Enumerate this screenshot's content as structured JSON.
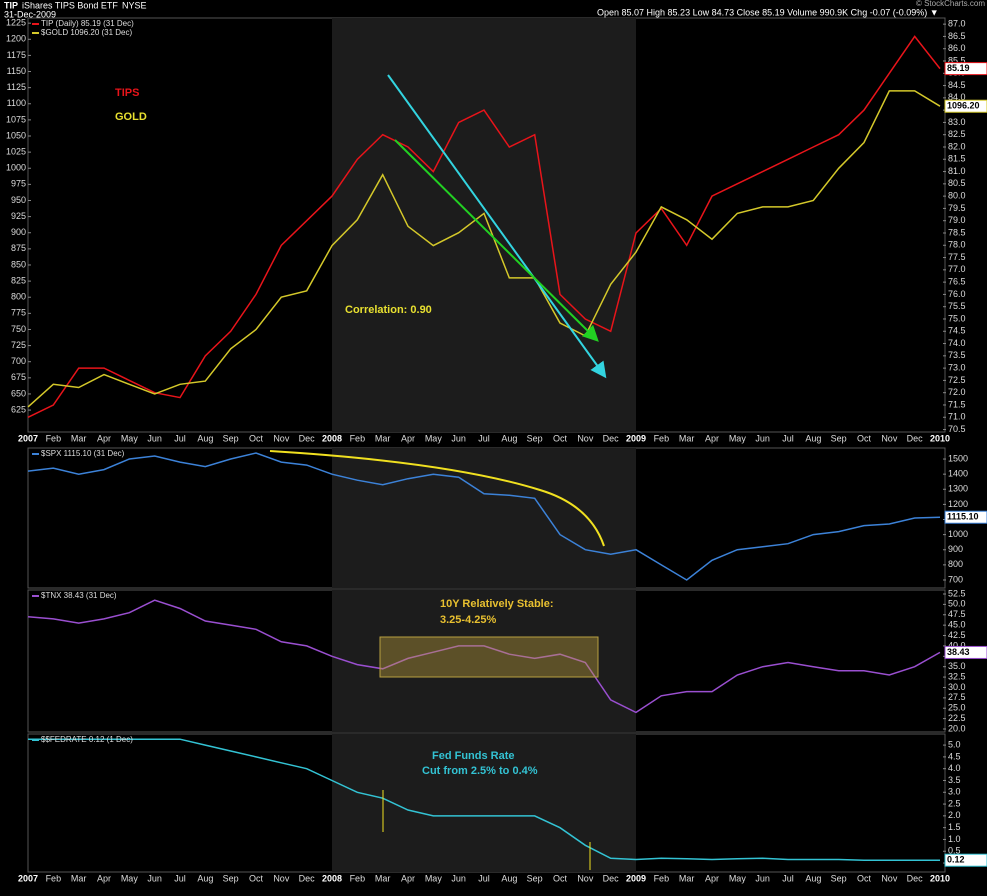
{
  "header": {
    "symbol": "TIP",
    "name": "iShares TIPS Bond ETF",
    "exchange": "NYSE",
    "date": "31-Dec-2009",
    "quote": "Open 85.07  High 85.23  Low 84.73  Close 85.19  Volume 990.9K  Chg -0.07 (-0.09%) ▼",
    "credit": "© StockCharts.com"
  },
  "chart_data": [
    {
      "type": "line",
      "categories": [
        "2007",
        "Feb",
        "Mar",
        "Apr",
        "May",
        "Jun",
        "Jul",
        "Aug",
        "Sep",
        "Oct",
        "Nov",
        "Dec",
        "2008",
        "Feb",
        "Mar",
        "Apr",
        "May",
        "Jun",
        "Jul",
        "Aug",
        "Sep",
        "Oct",
        "Nov",
        "Dec",
        "2009",
        "Feb",
        "Mar",
        "Apr",
        "May",
        "Jun",
        "Jul",
        "Aug",
        "Sep",
        "Oct",
        "Nov",
        "Dec",
        "2010"
      ],
      "ylim": [
        70.4,
        87.25
      ],
      "yticks": [
        {
          "value": 70.5,
          "label": "70.5"
        },
        {
          "value": 71,
          "label": "71.0"
        },
        {
          "value": 71.5,
          "label": "71.5"
        },
        {
          "value": 72,
          "label": "72.0"
        },
        {
          "value": 72.5,
          "label": "72.5"
        },
        {
          "value": 73,
          "label": "73.0"
        },
        {
          "value": 73.5,
          "label": "73.5"
        },
        {
          "value": 74,
          "label": "74.0"
        },
        {
          "value": 74.5,
          "label": "74.5"
        },
        {
          "value": 75,
          "label": "75.0"
        },
        {
          "value": 75.5,
          "label": "75.5"
        },
        {
          "value": 76,
          "label": "76.0"
        },
        {
          "value": 76.5,
          "label": "76.5"
        },
        {
          "value": 77,
          "label": "77.0"
        },
        {
          "value": 77.5,
          "label": "77.5"
        },
        {
          "value": 78,
          "label": "78.0"
        },
        {
          "value": 78.5,
          "label": "78.5"
        },
        {
          "value": 79,
          "label": "79.0"
        },
        {
          "value": 79.5,
          "label": "79.5"
        },
        {
          "value": 80,
          "label": "80.0"
        },
        {
          "value": 80.5,
          "label": "80.5"
        },
        {
          "value": 81,
          "label": "81.0"
        },
        {
          "value": 81.5,
          "label": "81.5"
        },
        {
          "value": 82,
          "label": "82.0"
        },
        {
          "value": 82.5,
          "label": "82.5"
        },
        {
          "value": 83,
          "label": "83.0"
        },
        {
          "value": 83.5,
          "label": "83.5"
        },
        {
          "value": 84,
          "label": "84.0"
        },
        {
          "value": 84.5,
          "label": "84.5"
        },
        {
          "value": 85,
          "label": "85.0"
        },
        {
          "value": 85.5,
          "label": "85.5"
        },
        {
          "value": 86,
          "label": "86.0"
        },
        {
          "value": 86.5,
          "label": "86.5"
        },
        {
          "value": 87,
          "label": "87.0"
        }
      ],
      "y2lim": [
        591,
        1233
      ],
      "y2ticks": [
        625,
        650,
        675,
        700,
        725,
        750,
        775,
        800,
        825,
        850,
        875,
        900,
        925,
        950,
        975,
        1000,
        1025,
        1050,
        1075,
        1100,
        1125,
        1150,
        1175,
        1200,
        1225
      ],
      "series": [
        {
          "name": "TIP (Daily) 85.19 (31 Dec)",
          "color": "#e8141a",
          "last_label": "85.19",
          "values": [
            71,
            71.5,
            73,
            73,
            72.5,
            72,
            71.8,
            73.5,
            74.5,
            76,
            78,
            79,
            80,
            81.5,
            82.5,
            82,
            81,
            83,
            83.5,
            82,
            82.5,
            76,
            75,
            74.5,
            78.5,
            79.5,
            78,
            80,
            80.5,
            81,
            81.5,
            82,
            82.5,
            83.5,
            85,
            86.5,
            85.19
          ]
        },
        {
          "name": "$GOLD 1096.20 (31 Dec)",
          "color": "#d4c82a",
          "axis": "y2",
          "last_label": "1096.20",
          "values": [
            630,
            665,
            660,
            680,
            665,
            650,
            665,
            670,
            720,
            750,
            800,
            810,
            880,
            920,
            990,
            910,
            880,
            900,
            930,
            830,
            830,
            760,
            740,
            820,
            870,
            940,
            920,
            890,
            930,
            940,
            940,
            950,
            1000,
            1040,
            1120,
            1120,
            1096.2
          ]
        }
      ],
      "annotations": [
        {
          "text": "TIPS",
          "color": "#e8141a"
        },
        {
          "text": "GOLD",
          "color": "#e8e030"
        },
        {
          "text": "Correlation: 0.90",
          "color": "#e8e030"
        }
      ]
    },
    {
      "type": "line",
      "ylim": [
        647,
        1573
      ],
      "yticks": [
        700,
        800,
        900,
        1000,
        1100,
        1200,
        1300,
        1400,
        1500
      ],
      "series": [
        {
          "name": "$SPX 1115.10 (31 Dec)",
          "color": "#3c82d8",
          "last_label": "1115.10",
          "values": [
            1420,
            1440,
            1400,
            1430,
            1500,
            1520,
            1480,
            1450,
            1500,
            1540,
            1480,
            1460,
            1400,
            1360,
            1330,
            1370,
            1400,
            1380,
            1270,
            1260,
            1240,
            1000,
            900,
            870,
            900,
            800,
            700,
            830,
            900,
            920,
            940,
            1000,
            1020,
            1060,
            1070,
            1110,
            1115.1
          ]
        }
      ]
    },
    {
      "type": "line",
      "ylim": [
        19.28,
        53.46
      ],
      "yticks": [
        {
          "value": 20,
          "label": "20.0"
        },
        22.5,
        {
          "value": 25,
          "label": "25.0"
        },
        27.5,
        {
          "value": 30,
          "label": "30.0"
        },
        32.5,
        {
          "value": 35,
          "label": "35.0"
        },
        37.5,
        {
          "value": 40,
          "label": "40.0"
        },
        42.5,
        {
          "value": 45,
          "label": "45.0"
        },
        47.5,
        {
          "value": 50,
          "label": "50.0"
        },
        52.5
      ],
      "series": [
        {
          "name": "$TNX 38.43 (31 Dec)",
          "color": "#9a4fd0",
          "last_label": "38.43",
          "values": [
            47,
            46.5,
            45.5,
            46.5,
            48,
            51,
            49,
            46,
            45,
            44,
            41,
            40,
            37.5,
            35.5,
            34.5,
            37,
            38.5,
            40,
            40,
            38,
            37,
            38,
            36,
            27,
            24,
            28,
            29,
            29,
            33,
            35,
            36,
            35,
            34,
            34,
            33,
            35,
            38.43
          ]
        }
      ],
      "annotations": [
        {
          "text": "10Y Relatively Stable:",
          "color": "#e8c030"
        },
        {
          "text": "3.25-4.25%",
          "color": "#e8c030"
        }
      ]
    },
    {
      "type": "line",
      "categories": [
        "2007",
        "Feb",
        "Mar",
        "Apr",
        "May",
        "Jun",
        "Jul",
        "Aug",
        "Sep",
        "Oct",
        "Nov",
        "Dec",
        "2008",
        "Feb",
        "Mar",
        "Apr",
        "May",
        "Jun",
        "Jul",
        "Aug",
        "Sep",
        "Oct",
        "Nov",
        "Dec",
        "2009",
        "Feb",
        "Mar",
        "Apr",
        "May",
        "Jun",
        "Jul",
        "Aug",
        "Sep",
        "Oct",
        "Nov",
        "Dec",
        "2010"
      ],
      "ylim": [
        -0.38,
        5.47
      ],
      "yticks": [
        {
          "value": 0,
          "label": "0.0"
        },
        0.5,
        {
          "value": 1,
          "label": "1.0"
        },
        1.5,
        {
          "value": 2,
          "label": "2.0"
        },
        2.5,
        {
          "value": 3,
          "label": "3.0"
        },
        3.5,
        {
          "value": 4,
          "label": "4.0"
        },
        4.5,
        {
          "value": 5,
          "label": "5.0"
        }
      ],
      "series": [
        {
          "name": "$$FEDRATE 0.12 (1 Dec)",
          "color": "#33c3d4",
          "last_label": "0.12",
          "values": [
            5.25,
            5.25,
            5.25,
            5.25,
            5.25,
            5.25,
            5.25,
            5.0,
            4.75,
            4.5,
            4.25,
            4.0,
            3.5,
            3.0,
            2.75,
            2.25,
            2.0,
            2.0,
            2.0,
            2.0,
            2.0,
            1.5,
            0.75,
            0.2,
            0.15,
            0.2,
            0.18,
            0.15,
            0.18,
            0.2,
            0.15,
            0.15,
            0.15,
            0.12,
            0.12,
            0.12,
            0.12
          ]
        }
      ],
      "annotations": [
        {
          "text": "Fed Funds Rate",
          "color": "#33c3d4"
        },
        {
          "text": "Cut from 2.5% to 0.4%",
          "color": "#33c3d4"
        }
      ]
    }
  ]
}
